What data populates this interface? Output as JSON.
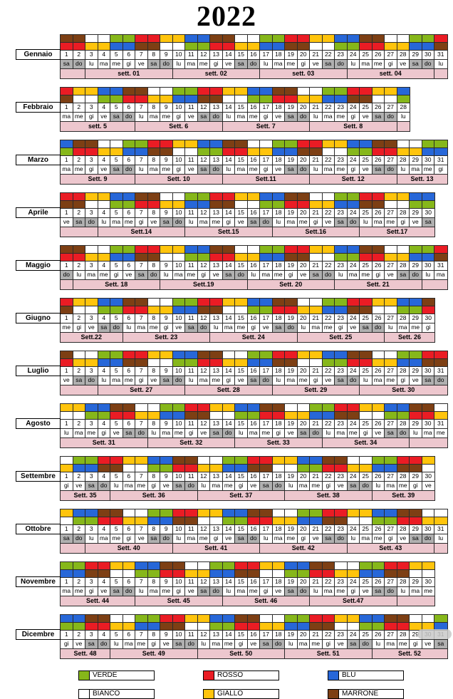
{
  "title": "2022",
  "palette": {
    "G": "#86b71a",
    "R": "#ea1c24",
    "B": "#2767d8",
    "W": "#ffffff",
    "Y": "#ffc40c",
    "M": "#7d3f14",
    "week_band": "#edc7ce",
    "weekend_bg": "#b0b0b0",
    "grid_border": "#2b2b2b"
  },
  "weekday_names": [
    "lu",
    "ma",
    "me",
    "gi",
    "ve",
    "sa",
    "do"
  ],
  "weekend_days": [
    "sa",
    "do"
  ],
  "months": [
    {
      "name": "Gennaio",
      "days": 31,
      "first_dow": 5,
      "shift_rows": [
        "MMWWGGRRYYBBMMWWGGRRYYBBMMWWGGR",
        "RRYYBBMMWWGGRRYYBBMMWWGGRRYYBBM"
      ],
      "weeks": [
        {
          "span": 2,
          "label": ""
        },
        {
          "span": 7,
          "label": "sett. 01"
        },
        {
          "span": 7,
          "label": "sett. 02"
        },
        {
          "span": 7,
          "label": "sett. 03"
        },
        {
          "span": 7,
          "label": "sett. 04"
        },
        {
          "span": 1,
          "label": ""
        }
      ]
    },
    {
      "name": "Febbraio",
      "days": 28,
      "first_dow": 1,
      "shift_rows": [
        "RYYBBMMWWGGRRYYBBMMWWGGRRYYB",
        "MWWGGRRYYBBMMWWGGRRYYBBMMWWG"
      ],
      "weeks": [
        {
          "span": 6,
          "label": "sett. 5"
        },
        {
          "span": 7,
          "label": "Sett. 6"
        },
        {
          "span": 7,
          "label": "Sett. 7"
        },
        {
          "span": 7,
          "label": "Sett. 8"
        },
        {
          "span": 1,
          "label": ""
        }
      ]
    },
    {
      "name": "Marzo",
      "days": 31,
      "first_dow": 1,
      "shift_rows": [
        "BMMWWGGRRYYBBMMWWGGRRYYBBMMWWGG",
        "GRRYYBBMMWWGGRRYYBBMMWWGGRRYYBB"
      ],
      "weeks": [
        {
          "span": 6,
          "label": "Sett. 9"
        },
        {
          "span": 7,
          "label": "Sett. 10"
        },
        {
          "span": 7,
          "label": "Sett.11"
        },
        {
          "span": 7,
          "label": "Sett. 12"
        },
        {
          "span": 4,
          "label": "Sett. 13"
        }
      ]
    },
    {
      "name": "Aprile",
      "days": 30,
      "first_dow": 4,
      "shift_rows": [
        "RRYYBBMMWWGGRRYYBBMMWWGGRRYYBB",
        "MMWWGGRRYYBBMMWWGGRRYYBBMMWWGG"
      ],
      "weeks": [
        {
          "span": 3,
          "label": ""
        },
        {
          "span": 7,
          "label": "Sett.14"
        },
        {
          "span": 7,
          "label": "Sett.15"
        },
        {
          "span": 7,
          "label": "Sett.16"
        },
        {
          "span": 6,
          "label": "Sett.17"
        }
      ]
    },
    {
      "name": "Maggio",
      "days": 31,
      "first_dow": 6,
      "shift_rows": [
        "MMWWGGRRYYBBMMWWGGRRYYBBMMWWGGR",
        "RRYYBBMMWWGGRRYYBBMMWWGGRRYYBBM"
      ],
      "weeks": [
        {
          "span": 1,
          "label": ""
        },
        {
          "span": 7,
          "label": "Sett. 18"
        },
        {
          "span": 7,
          "label": "Sett.19"
        },
        {
          "span": 7,
          "label": "Sett. 20"
        },
        {
          "span": 7,
          "label": "Sett. 21"
        },
        {
          "span": 2,
          "label": ""
        }
      ]
    },
    {
      "name": "Giugno",
      "days": 30,
      "first_dow": 2,
      "shift_rows": [
        "RYYBBMMWWGGRRYYBBMMWWGGRRYYBBM",
        "MWWGGRRYYBBMMWWGGRRYYBBMMWWGGR"
      ],
      "weeks": [
        {
          "span": 5,
          "label": "Sett.22"
        },
        {
          "span": 7,
          "label": "Sett. 23"
        },
        {
          "span": 7,
          "label": "Sett. 24"
        },
        {
          "span": 7,
          "label": "Sett. 25"
        },
        {
          "span": 4,
          "label": "Sett. 26"
        }
      ]
    },
    {
      "name": "Luglio",
      "days": 31,
      "first_dow": 4,
      "shift_rows": [
        "MWWGGRRYYBBMMWWGGRRYYBBMMWWGGRR",
        "RYYBBMMWWGGRRYYBBMMWWGGRRYYBBMM"
      ],
      "weeks": [
        {
          "span": 3,
          "label": ""
        },
        {
          "span": 7,
          "label": "Sett. 27"
        },
        {
          "span": 7,
          "label": "Sett. 28"
        },
        {
          "span": 7,
          "label": "Sett. 29"
        },
        {
          "span": 7,
          "label": "Sett. 30"
        }
      ]
    },
    {
      "name": "Agosto",
      "days": 31,
      "first_dow": 0,
      "shift_rows": [
        "YYBBMMWWGGRRYYBBMMWWGGRRYYBBMMW",
        "WWGGRRYYBBMMWWGGRRYYBBMMWWGGRRY"
      ],
      "weeks": [
        {
          "span": 7,
          "label": "Sett. 31"
        },
        {
          "span": 7,
          "label": "Sett. 32"
        },
        {
          "span": 7,
          "label": "Sett. 33"
        },
        {
          "span": 7,
          "label": "Sett. 34"
        },
        {
          "span": 3,
          "label": ""
        }
      ]
    },
    {
      "name": "Settembre",
      "days": 30,
      "first_dow": 3,
      "shift_rows": [
        "WGGRRYYBBMMWWGGRRYYBBMMWWGGRRY",
        "YBBMMWWGGRRYYBBMMWWGGRRYYBBMMW"
      ],
      "weeks": [
        {
          "span": 4,
          "label": "Sett. 35"
        },
        {
          "span": 7,
          "label": "Sett. 36"
        },
        {
          "span": 7,
          "label": "Sett. 37"
        },
        {
          "span": 7,
          "label": "Sett. 38"
        },
        {
          "span": 5,
          "label": "Sett. 39"
        }
      ]
    },
    {
      "name": "Ottobre",
      "days": 31,
      "first_dow": 5,
      "shift_rows": [
        "YBBMMWWGGRRYYBBMMWWGGRRYYBBMMWW",
        "WGGRRYYBBMMWWGGRRYYBBMMWWGGRRYY"
      ],
      "weeks": [
        {
          "span": 2,
          "label": ""
        },
        {
          "span": 7,
          "label": "Sett. 40"
        },
        {
          "span": 7,
          "label": "Sett. 41"
        },
        {
          "span": 7,
          "label": "Sett. 42"
        },
        {
          "span": 7,
          "label": "Sett. 43"
        },
        {
          "span": 1,
          "label": ""
        }
      ]
    },
    {
      "name": "Novembre",
      "days": 30,
      "first_dow": 1,
      "shift_rows": [
        "GGRRYYBBMMWWGGRRYYBBMMWWGGRRYY",
        "BBMMWWGGRRYYBBMMWWGGRRYYBBMMWW"
      ],
      "weeks": [
        {
          "span": 6,
          "label": "Sett. 44"
        },
        {
          "span": 7,
          "label": "Sett. 45"
        },
        {
          "span": 7,
          "label": "Sett. 46"
        },
        {
          "span": 7,
          "label": "Sett.47"
        },
        {
          "span": 3,
          "label": ""
        }
      ]
    },
    {
      "name": "Dicembre",
      "days": 31,
      "first_dow": 3,
      "shift_rows": [
        "BBMMWWGGRRYYBBMMWWGGRRYYBBMMWWG",
        "GGRRYYBBMMWWGGRRYYBBMMWWGGRRYYB"
      ],
      "weeks": [
        {
          "span": 4,
          "label": "Sett. 48"
        },
        {
          "span": 7,
          "label": "Sett. 49"
        },
        {
          "span": 7,
          "label": "Sett. 50"
        },
        {
          "span": 7,
          "label": "Sett. 51"
        },
        {
          "span": 6,
          "label": "Sett. 52"
        }
      ]
    }
  ],
  "legend": [
    {
      "code": "G",
      "label": "VERDE"
    },
    {
      "code": "R",
      "label": "ROSSO"
    },
    {
      "code": "B",
      "label": "BLU"
    },
    {
      "code": "W",
      "label": "BIANCO"
    },
    {
      "code": "Y",
      "label": "GIALLO"
    },
    {
      "code": "M",
      "label": "MARRONE"
    }
  ]
}
